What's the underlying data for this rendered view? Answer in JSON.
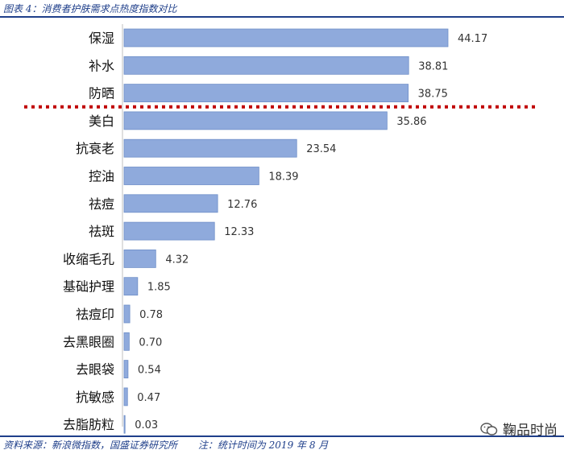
{
  "header": {
    "title": "图表 4：消费者护肤需求点热度指数对比"
  },
  "footer": {
    "source": "资料来源：新浪微指数，国盛证券研究所",
    "note": "注：统计时间为 2019 年 8 月"
  },
  "watermark": {
    "text": "鞠品时尚",
    "icon": "wechat-icon"
  },
  "colors": {
    "bar": "#8faadc",
    "bar_edge": "#6f8fc8",
    "divider": "#c00000",
    "frame": "#1f3f8a"
  },
  "chart_data": {
    "type": "bar",
    "orientation": "horizontal",
    "categories": [
      "保湿",
      "补水",
      "防晒",
      "美白",
      "抗衰老",
      "控油",
      "祛痘",
      "祛斑",
      "收缩毛孔",
      "基础护理",
      "祛痘印",
      "去黑眼圈",
      "去眼袋",
      "抗敏感",
      "去脂肪粒"
    ],
    "values": [
      44.17,
      38.81,
      38.75,
      35.86,
      23.54,
      18.39,
      12.76,
      12.33,
      4.32,
      1.85,
      0.78,
      0.7,
      0.54,
      0.47,
      0.03
    ],
    "value_labels": [
      "44.17",
      "38.81",
      "38.75",
      "35.86",
      "23.54",
      "18.39",
      "12.76",
      "12.33",
      "4.32",
      "1.85",
      "0.78",
      "0.70",
      "0.54",
      "0.47",
      "0.03"
    ],
    "xlim": [
      0,
      44.17
    ],
    "divider_after_index": 2,
    "divider_style": "dotted",
    "grid": false,
    "legend": "none"
  }
}
